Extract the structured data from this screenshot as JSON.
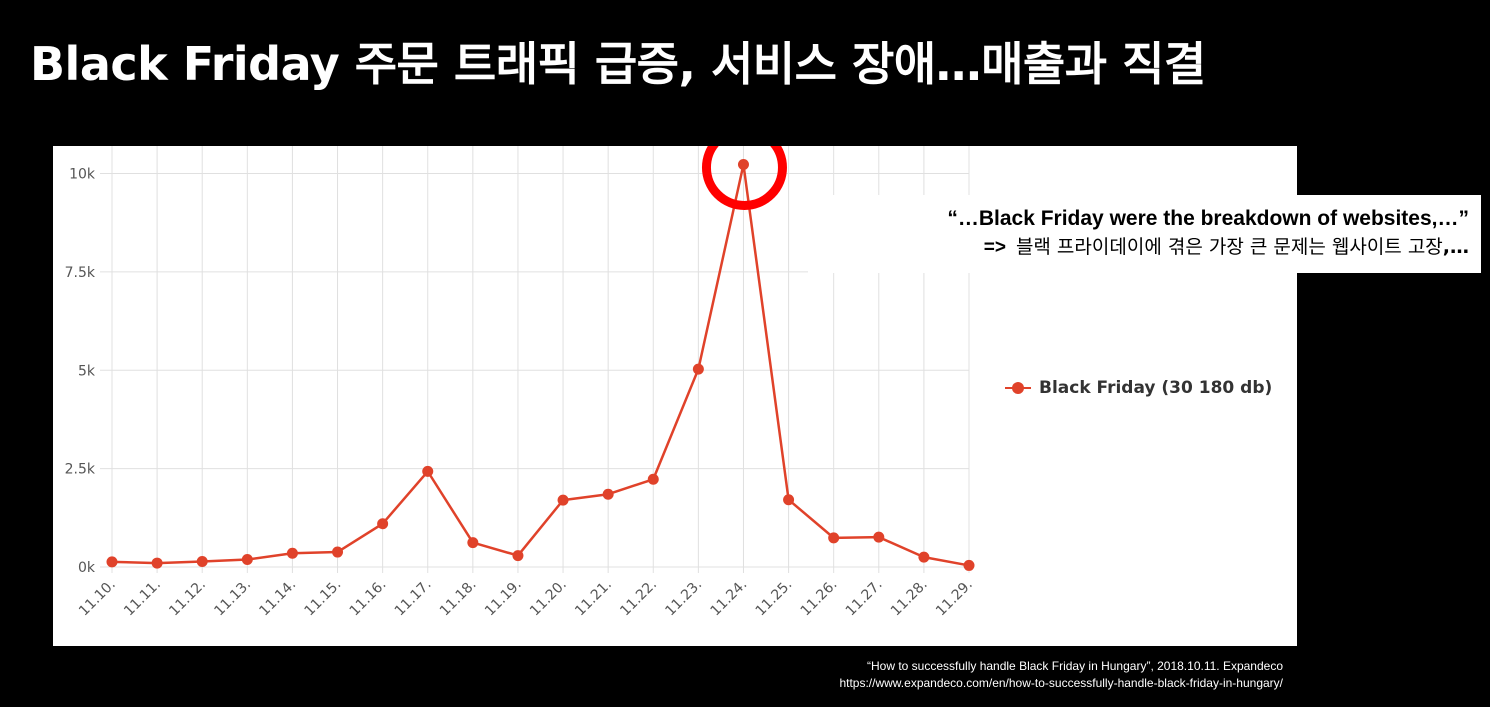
{
  "slide": {
    "title": "Black Friday 주문 트래픽 급증, 서비스 장애…매출과 직결"
  },
  "quote": {
    "english": "“…Black Friday were the breakdown of websites,…”",
    "arrow": "=>",
    "korean": "블랙 프라이데이에 겪은 가장 큰 문제는 웹사이트 고장",
    "ellipsis": ",…"
  },
  "citation": {
    "line1": "“How to successfully handle Black Friday in Hungary”, 2018.10.11. Expandeco",
    "line2": "https://www.expandeco.com/en/how-to-successfully-handle-black-friday-in-hungary/"
  },
  "colors": {
    "series": "#e0422a",
    "highlight_ring": "#ff0000",
    "grid": "#e0e0e0",
    "axis_text": "#555555"
  },
  "chart_data": {
    "type": "line",
    "categories": [
      "11.10.",
      "11.11.",
      "11.12.",
      "11.13.",
      "11.14.",
      "11.15.",
      "11.16.",
      "11.17.",
      "11.18.",
      "11.19.",
      "11.20.",
      "11.21.",
      "11.22.",
      "11.23.",
      "11.24.",
      "11.25.",
      "11.26.",
      "11.27.",
      "11.28.",
      "11.29."
    ],
    "series": [
      {
        "name": "Black Friday (30 180 db)",
        "values": [
          130,
          100,
          140,
          190,
          350,
          380,
          1100,
          2430,
          620,
          290,
          1700,
          1850,
          2230,
          5030,
          10230,
          1710,
          740,
          760,
          250,
          40
        ]
      }
    ],
    "y_ticks": [
      "0k",
      "2.5k",
      "5k",
      "7.5k",
      "10k"
    ],
    "y_tick_values": [
      0,
      2500,
      5000,
      7500,
      10000
    ],
    "ylim": [
      0,
      10700
    ],
    "grid": true,
    "legend_position": "right",
    "highlight_category": "11.24."
  }
}
